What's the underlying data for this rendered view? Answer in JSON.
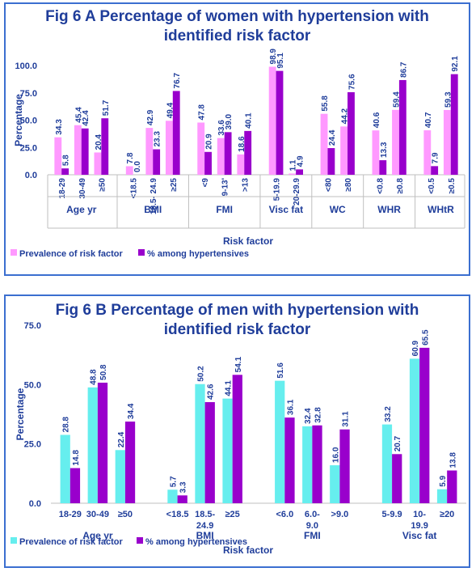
{
  "chart_data": [
    {
      "type": "bar",
      "title_line1": "Fig 6 A Percentage of women with hypertension with",
      "title_line2": "identified risk factor",
      "ylabel": "Percentage",
      "xlabel": "Risk factor",
      "ylim": [
        0,
        100
      ],
      "yticks": [
        "0.0",
        "25.0",
        "50.0",
        "75.0",
        "100.0"
      ],
      "ytick_values": [
        0,
        25,
        50,
        75,
        100
      ],
      "groups": [
        {
          "name": "Age yr",
          "categories": [
            "18-29",
            "30-49",
            "≥50"
          ]
        },
        {
          "name": "BMI",
          "categories": [
            "<18.5",
            "18.5- 24.9",
            "≥25"
          ]
        },
        {
          "name": "FMI",
          "categories": [
            "<9",
            "9-13'",
            ">13"
          ]
        },
        {
          "name": "Visc fat",
          "categories": [
            "5-19.9",
            "20-29.9"
          ]
        },
        {
          "name": "WC",
          "categories": [
            "<80",
            "≥80"
          ]
        },
        {
          "name": "WHR",
          "categories": [
            "<0.8",
            "≥0.8"
          ]
        },
        {
          "name": "WHtR",
          "categories": [
            "<0.5",
            "≥0.5"
          ]
        }
      ],
      "series": [
        {
          "name": "Prevalence of risk factor",
          "color": "#ff99ff",
          "values": [
            34.3,
            45.4,
            20.4,
            7.8,
            42.9,
            49.4,
            47.8,
            33.6,
            18.6,
            98.9,
            1.1,
            55.8,
            44.2,
            40.6,
            59.4,
            40.7,
            59.3
          ],
          "labels": [
            "34.3",
            "45.4",
            "20.4",
            "7.8",
            "42.9",
            "49.4",
            "47.8",
            "33.6",
            "18.6",
            "98.9",
            "1.1",
            "55.8",
            "44.2",
            "40.6",
            "59.4",
            "40.7",
            "59.3"
          ]
        },
        {
          "name": "% among hypertensives",
          "color": "#9900cc",
          "values": [
            5.8,
            42.4,
            51.7,
            0.0,
            23.3,
            76.7,
            20.9,
            39.0,
            40.1,
            95.1,
            4.9,
            24.4,
            75.6,
            13.3,
            86.7,
            7.9,
            92.1
          ],
          "labels": [
            "5.8",
            "42.4",
            "51.7",
            "0.0",
            "23.3",
            "76.7",
            "20.9",
            "39.0",
            "40.1",
            "95.1",
            "4.9",
            "24.4",
            "75.6",
            "13.3",
            "86.7",
            "7.9",
            "92.1"
          ]
        }
      ],
      "legend_position": "bottom-left",
      "grid": false
    },
    {
      "type": "bar",
      "title_line1": "Fig 6 B Percentage of men with hypertension with",
      "title_line2": "identified risk factor",
      "ylabel": "Percentage",
      "xlabel": "Risk factor",
      "ylim": [
        0,
        75
      ],
      "yticks": [
        "0.0",
        "25.0",
        "50.0",
        "75.0"
      ],
      "ytick_values": [
        0,
        25,
        50,
        75
      ],
      "groups": [
        {
          "name": "Age yr",
          "categories": [
            "18-29",
            "30-49",
            "≥50"
          ]
        },
        {
          "name": "BMI",
          "categories": [
            "<18.5",
            "18.5-\n24.9",
            "≥25"
          ]
        },
        {
          "name": "FMI",
          "categories": [
            "<6.0",
            "6.0-\n9.0",
            ">9.0"
          ]
        },
        {
          "name": "Visc fat",
          "categories": [
            "5-9.9",
            "10-\n19.9",
            "≥20"
          ]
        }
      ],
      "series": [
        {
          "name": "Prevalence of risk factor",
          "color": "#66eeee",
          "values": [
            28.8,
            48.8,
            22.4,
            5.7,
            50.2,
            44.1,
            51.6,
            32.4,
            16.0,
            33.2,
            60.9,
            5.9
          ],
          "labels": [
            "28.8",
            "48.8",
            "22.4",
            "5.7",
            "50.2",
            "44.1",
            "51.6",
            "32.4",
            "16.0",
            "33.2",
            "60.9",
            "5.9"
          ]
        },
        {
          "name": "% among hypertensives",
          "color": "#9900cc",
          "values": [
            14.8,
            50.8,
            34.4,
            3.3,
            42.6,
            54.1,
            36.1,
            32.8,
            31.1,
            20.7,
            65.5,
            13.8
          ],
          "labels": [
            "14.8",
            "50.8",
            "34.4",
            "3.3",
            "42.6",
            "54.1",
            "36.1",
            "32.8",
            "31.1",
            "20.7",
            "65.5",
            "13.8"
          ]
        }
      ],
      "legend_position": "bottom-left",
      "grid": false
    }
  ]
}
